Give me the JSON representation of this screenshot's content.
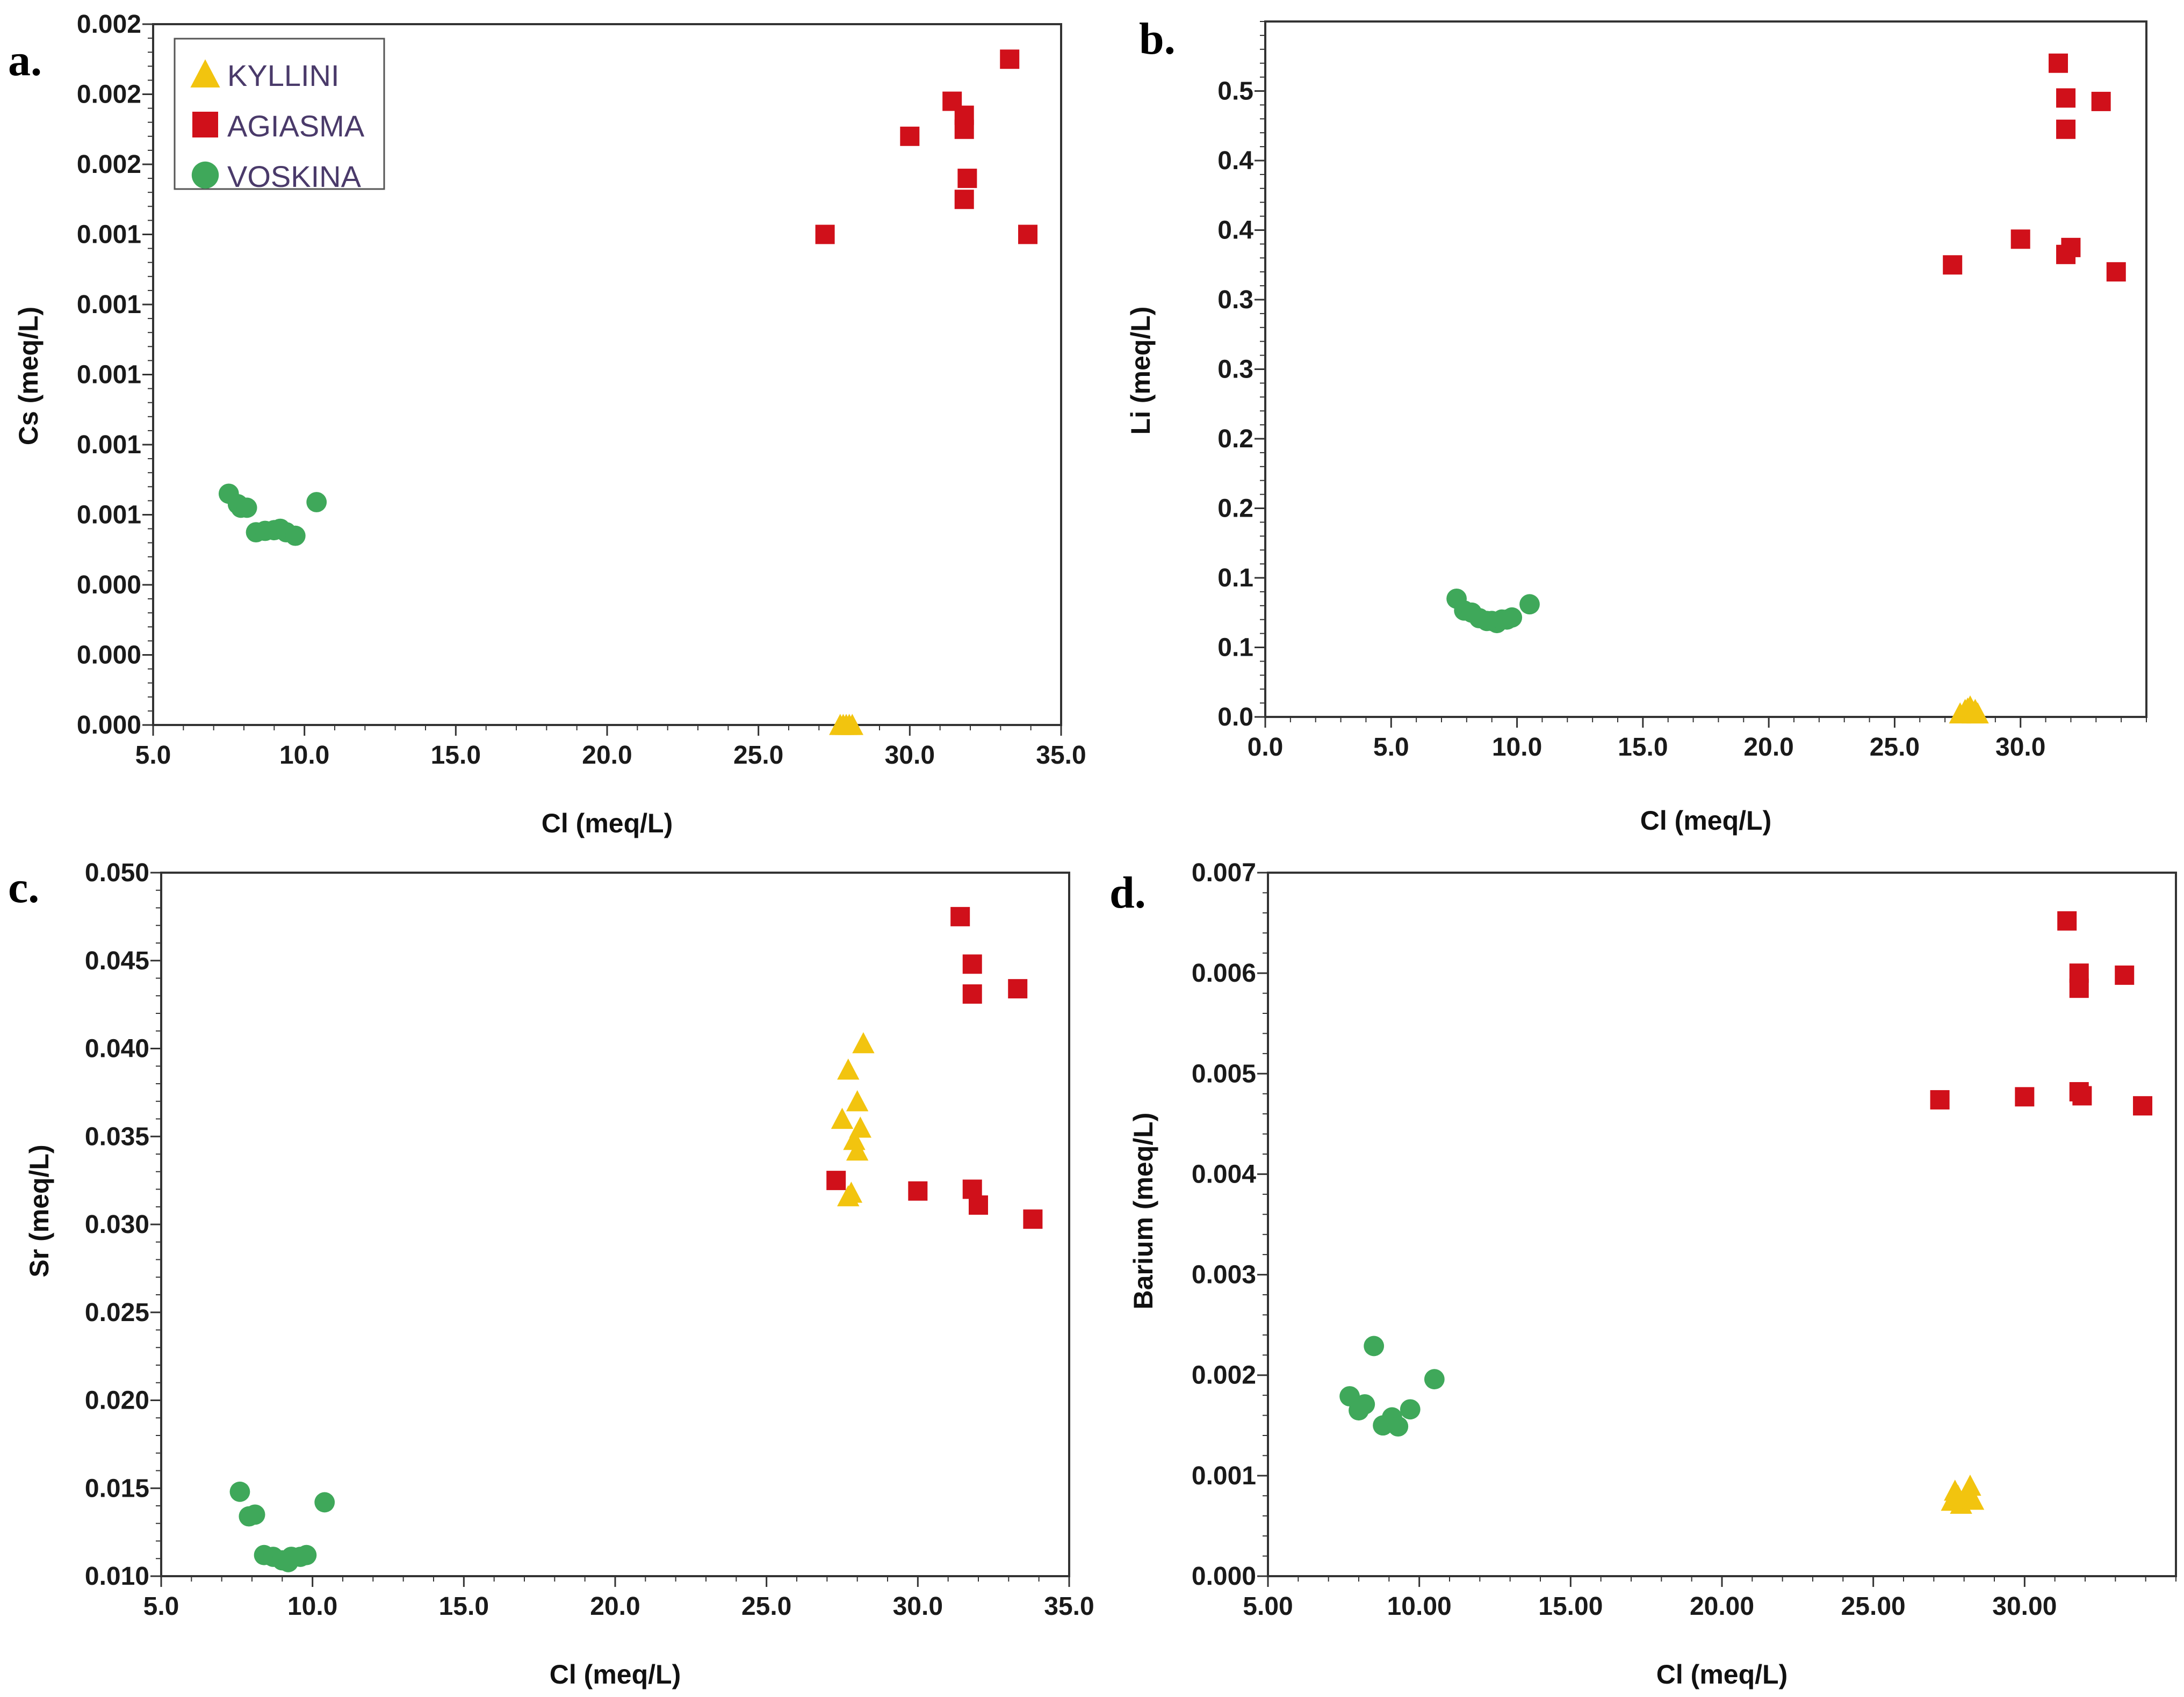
{
  "colors": {
    "KYLLINI": "#f2c40f",
    "AGIASMA": "#d0101a",
    "VOSKINA": "#3fa85a",
    "axis": "#333333"
  },
  "legend": [
    {
      "name": "KYLLINI",
      "marker": "triangle"
    },
    {
      "name": "AGIASMA",
      "marker": "square"
    },
    {
      "name": "VOSKINA",
      "marker": "circle"
    }
  ],
  "chart_data": [
    {
      "id": "a",
      "panel_label": "a.",
      "type": "scatter",
      "xlabel": "Cl (meq/L)",
      "ylabel": "Cs (meq/L)",
      "xlim": [
        5,
        35
      ],
      "ylim": [
        0,
        10
      ],
      "xticks": [
        {
          "v": 5,
          "label": "5.0"
        },
        {
          "v": 10,
          "label": "10.0"
        },
        {
          "v": 15,
          "label": "15.0"
        },
        {
          "v": 20,
          "label": "20.0"
        },
        {
          "v": 25,
          "label": "25.0"
        },
        {
          "v": 30,
          "label": "30.0"
        },
        {
          "v": 35,
          "label": "35.0"
        }
      ],
      "yticks": [
        {
          "v": 0,
          "label": "0.000"
        },
        {
          "v": 1,
          "label": "0.000"
        },
        {
          "v": 2,
          "label": "0.000"
        },
        {
          "v": 3,
          "label": "0.001"
        },
        {
          "v": 4,
          "label": "0.001"
        },
        {
          "v": 5,
          "label": "0.001"
        },
        {
          "v": 6,
          "label": "0.001"
        },
        {
          "v": 7,
          "label": "0.001"
        },
        {
          "v": 8,
          "label": "0.002"
        },
        {
          "v": 9,
          "label": "0.002"
        },
        {
          "v": 10,
          "label": "0.002"
        }
      ],
      "legend_position": "top-left",
      "series": [
        {
          "name": "KYLLINI",
          "points": [
            [
              27.7,
              0.0
            ],
            [
              27.9,
              0.0
            ],
            [
              28.0,
              0.0
            ],
            [
              28.1,
              0.0
            ],
            [
              27.8,
              0.0
            ]
          ]
        },
        {
          "name": "AGIASMA",
          "points": [
            [
              27.2,
              7.0
            ],
            [
              30.0,
              8.4
            ],
            [
              31.4,
              8.9
            ],
            [
              31.8,
              8.7
            ],
            [
              31.8,
              8.5
            ],
            [
              31.9,
              7.8
            ],
            [
              31.8,
              7.5
            ],
            [
              33.3,
              9.5
            ],
            [
              33.9,
              7.0
            ]
          ]
        },
        {
          "name": "VOSKINA",
          "points": [
            [
              7.5,
              3.3
            ],
            [
              7.8,
              3.15
            ],
            [
              7.9,
              3.1
            ],
            [
              8.1,
              3.1
            ],
            [
              8.4,
              2.75
            ],
            [
              8.7,
              2.77
            ],
            [
              9.0,
              2.78
            ],
            [
              9.2,
              2.8
            ],
            [
              9.4,
              2.75
            ],
            [
              9.7,
              2.7
            ],
            [
              10.4,
              3.18
            ]
          ]
        }
      ]
    },
    {
      "id": "b",
      "panel_label": "b.",
      "type": "scatter",
      "xlabel": "Cl (meq/L)",
      "ylabel": "Li (meq/L)",
      "xlim": [
        0,
        35
      ],
      "ylim": [
        0,
        10
      ],
      "xticks": [
        {
          "v": 0,
          "label": "0.0"
        },
        {
          "v": 5,
          "label": "5.0"
        },
        {
          "v": 10,
          "label": "10.0"
        },
        {
          "v": 15,
          "label": "15.0"
        },
        {
          "v": 20,
          "label": "20.0"
        },
        {
          "v": 25,
          "label": "25.0"
        },
        {
          "v": 30,
          "label": "30.0"
        }
      ],
      "yticks": [
        {
          "v": 0,
          "label": "0.0"
        },
        {
          "v": 1,
          "label": "0.1"
        },
        {
          "v": 2,
          "label": "0.1"
        },
        {
          "v": 3,
          "label": "0.2"
        },
        {
          "v": 4,
          "label": "0.2"
        },
        {
          "v": 5,
          "label": "0.3"
        },
        {
          "v": 6,
          "label": "0.3"
        },
        {
          "v": 7,
          "label": "0.4"
        },
        {
          "v": 8,
          "label": "0.4"
        },
        {
          "v": 9,
          "label": "0.5"
        }
      ],
      "series": [
        {
          "name": "KYLLINI",
          "points": [
            [
              27.6,
              0.05
            ],
            [
              27.8,
              0.1
            ],
            [
              27.9,
              0.12
            ],
            [
              28.0,
              0.15
            ],
            [
              28.1,
              0.05
            ],
            [
              28.2,
              0.1
            ],
            [
              28.3,
              0.05
            ]
          ]
        },
        {
          "name": "AGIASMA",
          "points": [
            [
              27.3,
              6.5
            ],
            [
              30.0,
              6.87
            ],
            [
              31.5,
              9.4
            ],
            [
              31.8,
              8.9
            ],
            [
              31.8,
              8.45
            ],
            [
              31.8,
              6.65
            ],
            [
              32.0,
              6.75
            ],
            [
              33.2,
              8.85
            ],
            [
              33.8,
              6.4
            ]
          ]
        },
        {
          "name": "VOSKINA",
          "points": [
            [
              7.6,
              1.7
            ],
            [
              7.9,
              1.53
            ],
            [
              8.2,
              1.5
            ],
            [
              8.5,
              1.42
            ],
            [
              8.8,
              1.38
            ],
            [
              9.0,
              1.38
            ],
            [
              9.2,
              1.35
            ],
            [
              9.4,
              1.4
            ],
            [
              9.6,
              1.4
            ],
            [
              9.8,
              1.43
            ],
            [
              10.5,
              1.62
            ]
          ]
        }
      ]
    },
    {
      "id": "c",
      "panel_label": "c.",
      "type": "scatter",
      "xlabel": "Cl (meq/L)",
      "ylabel": "Sr (meq/L)",
      "xlim": [
        5,
        35
      ],
      "ylim": [
        0.01,
        0.05
      ],
      "xticks": [
        {
          "v": 5,
          "label": "5.0"
        },
        {
          "v": 10,
          "label": "10.0"
        },
        {
          "v": 15,
          "label": "15.0"
        },
        {
          "v": 20,
          "label": "20.0"
        },
        {
          "v": 25,
          "label": "25.0"
        },
        {
          "v": 30,
          "label": "30.0"
        },
        {
          "v": 35,
          "label": "35.0"
        }
      ],
      "yticks": [
        {
          "v": 0.01,
          "label": "0.010"
        },
        {
          "v": 0.015,
          "label": "0.015"
        },
        {
          "v": 0.02,
          "label": "0.020"
        },
        {
          "v": 0.025,
          "label": "0.025"
        },
        {
          "v": 0.03,
          "label": "0.030"
        },
        {
          "v": 0.035,
          "label": "0.035"
        },
        {
          "v": 0.04,
          "label": "0.040"
        },
        {
          "v": 0.045,
          "label": "0.045"
        },
        {
          "v": 0.05,
          "label": "0.050"
        }
      ],
      "series": [
        {
          "name": "KYLLINI",
          "points": [
            [
              27.7,
              0.0316
            ],
            [
              27.8,
              0.0318
            ],
            [
              27.5,
              0.036
            ],
            [
              27.9,
              0.0348
            ],
            [
              28.0,
              0.0342
            ],
            [
              28.1,
              0.0355
            ],
            [
              28.0,
              0.037
            ],
            [
              27.7,
              0.0388
            ],
            [
              28.2,
              0.0403
            ]
          ]
        },
        {
          "name": "AGIASMA",
          "points": [
            [
              27.3,
              0.0325
            ],
            [
              30.0,
              0.0319
            ],
            [
              31.4,
              0.0475
            ],
            [
              31.8,
              0.0448
            ],
            [
              31.8,
              0.0431
            ],
            [
              31.8,
              0.032
            ],
            [
              32.0,
              0.0311
            ],
            [
              33.3,
              0.0434
            ],
            [
              33.8,
              0.0303
            ]
          ]
        },
        {
          "name": "VOSKINA",
          "points": [
            [
              7.6,
              0.0148
            ],
            [
              7.9,
              0.0134
            ],
            [
              8.1,
              0.0135
            ],
            [
              8.4,
              0.0112
            ],
            [
              8.7,
              0.0111
            ],
            [
              9.0,
              0.0109
            ],
            [
              9.2,
              0.0108
            ],
            [
              9.3,
              0.0111
            ],
            [
              9.6,
              0.0111
            ],
            [
              9.8,
              0.0112
            ],
            [
              10.4,
              0.0142
            ]
          ]
        }
      ]
    },
    {
      "id": "d",
      "panel_label": "d.",
      "type": "scatter",
      "xlabel": "Cl (meq/L)",
      "ylabel": "Barium (meq/L)",
      "xlim": [
        5,
        35
      ],
      "ylim": [
        0,
        0.007
      ],
      "xticks": [
        {
          "v": 5,
          "label": "5.00"
        },
        {
          "v": 10,
          "label": "10.00"
        },
        {
          "v": 15,
          "label": "15.00"
        },
        {
          "v": 20,
          "label": "20.00"
        },
        {
          "v": 25,
          "label": "25.00"
        },
        {
          "v": 30,
          "label": "30.00"
        }
      ],
      "yticks": [
        {
          "v": 0,
          "label": "0.000"
        },
        {
          "v": 0.001,
          "label": "0.001"
        },
        {
          "v": 0.002,
          "label": "0.002"
        },
        {
          "v": 0.003,
          "label": "0.003"
        },
        {
          "v": 0.004,
          "label": "0.004"
        },
        {
          "v": 0.005,
          "label": "0.005"
        },
        {
          "v": 0.006,
          "label": "0.006"
        },
        {
          "v": 0.007,
          "label": "0.007"
        }
      ],
      "series": [
        {
          "name": "KYLLINI",
          "points": [
            [
              27.6,
              0.00075
            ],
            [
              27.8,
              0.0008
            ],
            [
              27.9,
              0.00072
            ],
            [
              28.0,
              0.00078
            ],
            [
              28.1,
              0.00082
            ],
            [
              28.2,
              0.0009
            ],
            [
              28.3,
              0.00076
            ],
            [
              27.7,
              0.00085
            ]
          ]
        },
        {
          "name": "AGIASMA",
          "points": [
            [
              27.2,
              0.00474
            ],
            [
              30.0,
              0.00477
            ],
            [
              31.4,
              0.00652
            ],
            [
              31.8,
              0.006
            ],
            [
              31.8,
              0.00585
            ],
            [
              31.8,
              0.00482
            ],
            [
              31.9,
              0.00478
            ],
            [
              33.3,
              0.00598
            ],
            [
              33.9,
              0.00468
            ]
          ]
        },
        {
          "name": "VOSKINA",
          "points": [
            [
              7.7,
              0.00179
            ],
            [
              8.0,
              0.00165
            ],
            [
              8.2,
              0.00171
            ],
            [
              8.5,
              0.00229
            ],
            [
              8.8,
              0.0015
            ],
            [
              9.1,
              0.00158
            ],
            [
              9.3,
              0.00149
            ],
            [
              9.7,
              0.00166
            ],
            [
              10.5,
              0.00196
            ]
          ]
        }
      ]
    }
  ]
}
